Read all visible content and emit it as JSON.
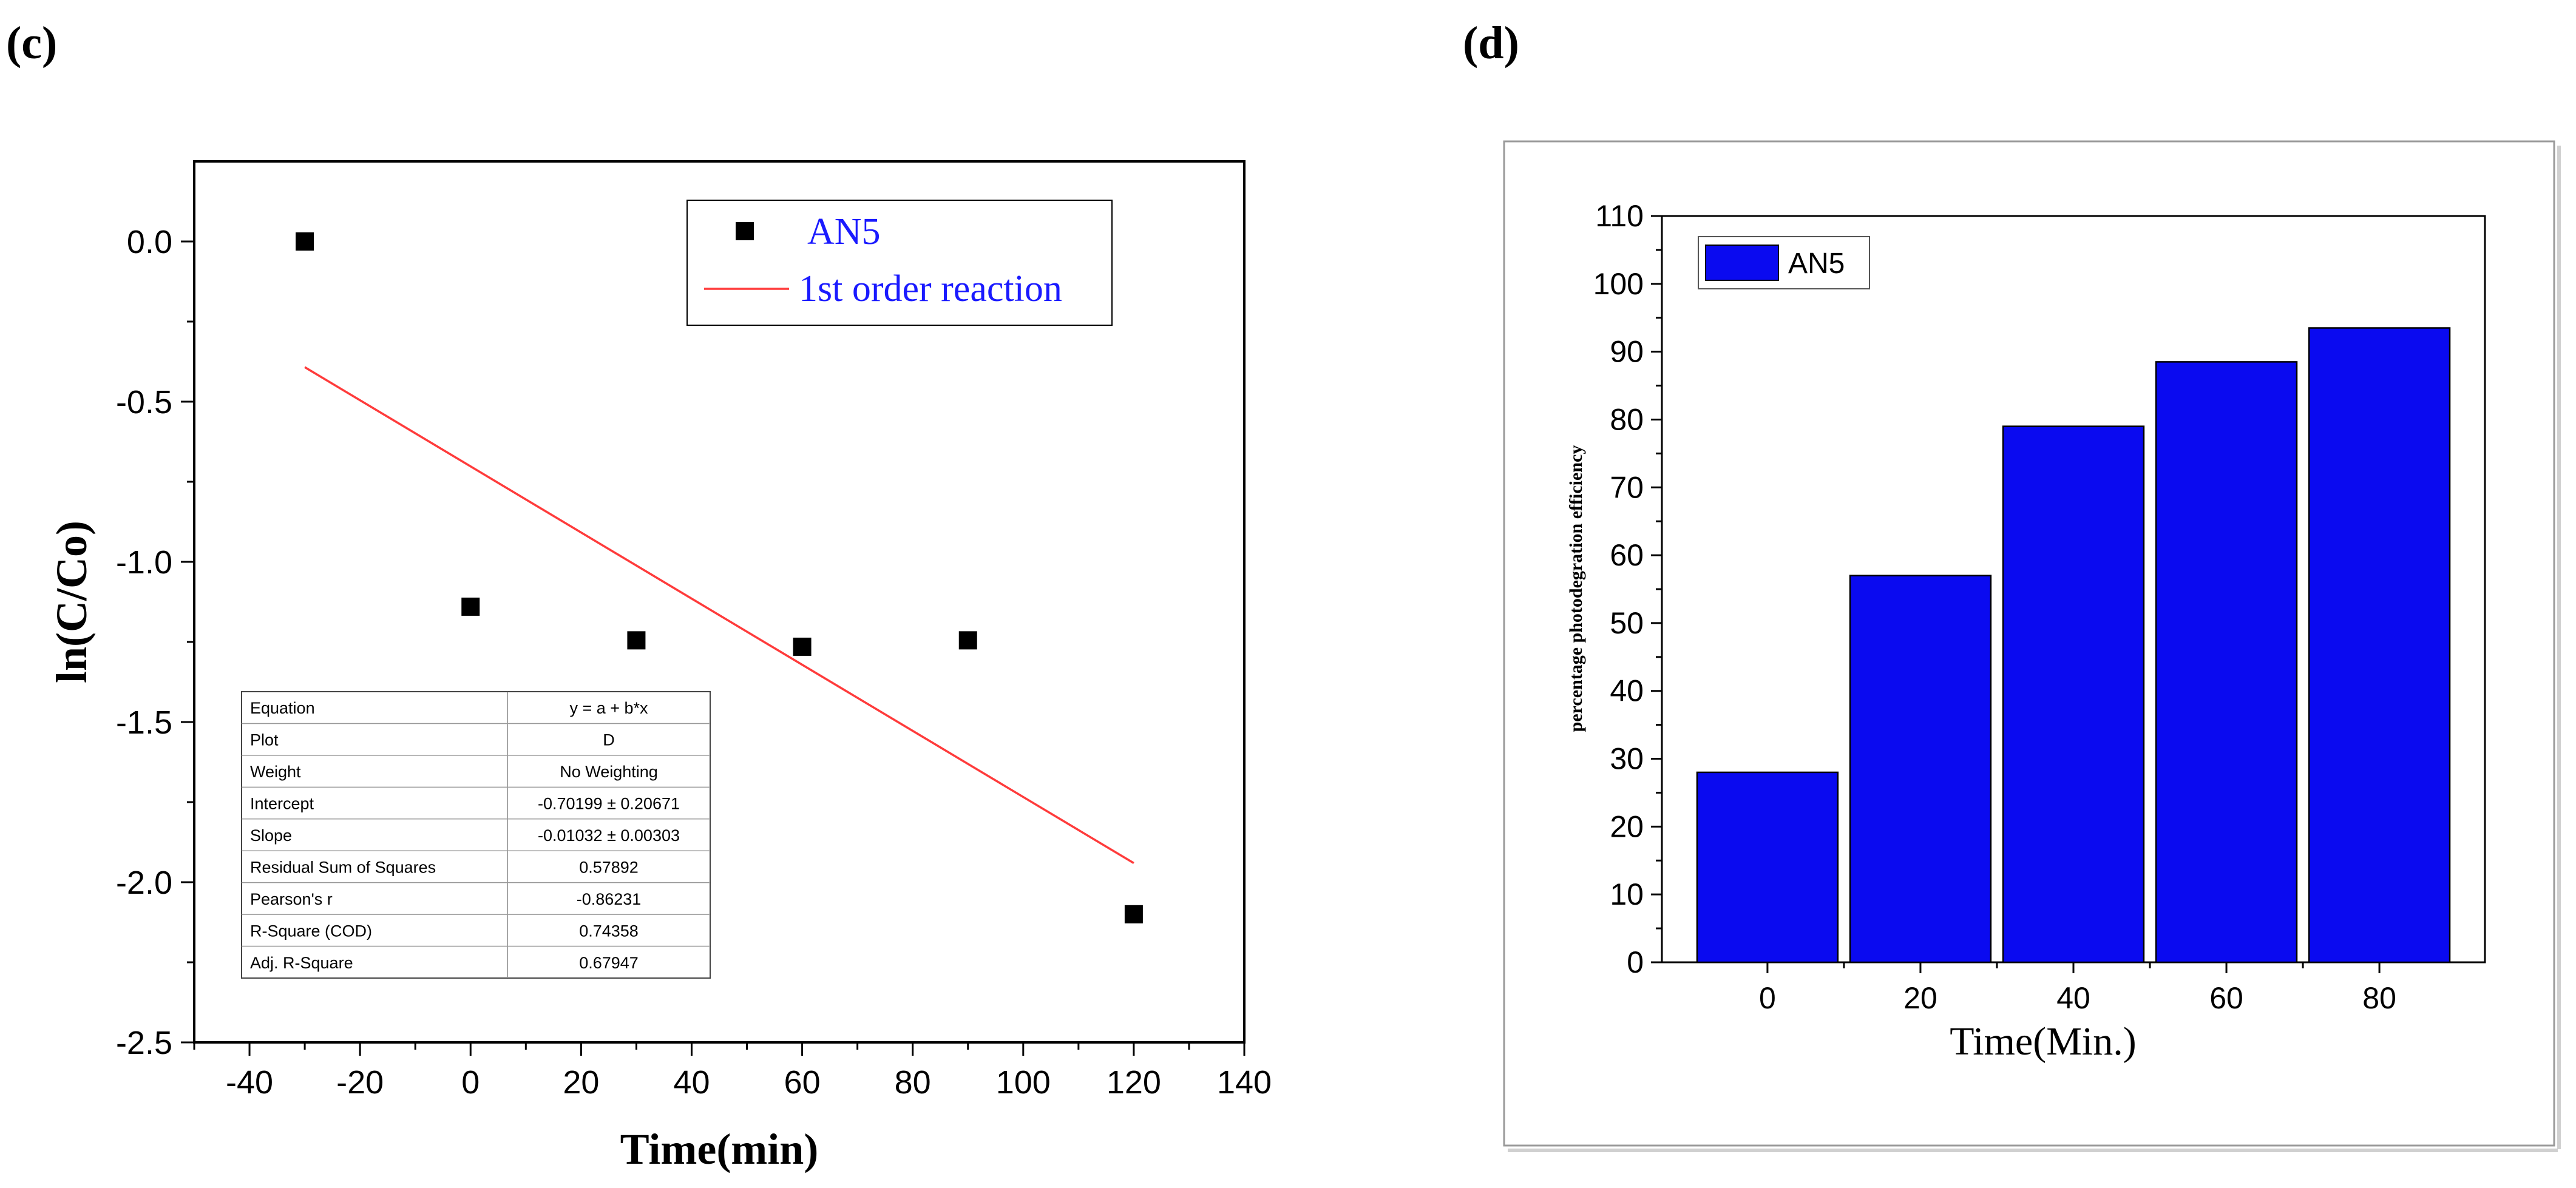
{
  "panels": {
    "c_label": "(c)",
    "d_label": "(d)"
  },
  "chart_data": [
    {
      "type": "scatter",
      "panel": "c",
      "title": "",
      "xlabel": "Time(min)",
      "ylabel": "ln(C/Co)",
      "xlim": [
        -50,
        140
      ],
      "ylim": [
        -2.5,
        0.25
      ],
      "xticks": [
        -40,
        -20,
        0,
        20,
        40,
        60,
        80,
        100,
        120,
        140
      ],
      "xtick_labels": [
        "-40",
        "-20",
        "0",
        "20",
        "40",
        "60",
        "80",
        "100",
        "120",
        "140"
      ],
      "yticks": [
        0.0,
        -0.5,
        -1.0,
        -1.5,
        -2.0,
        -2.5
      ],
      "ytick_labels": [
        "0.0",
        "-0.5",
        "-1.0",
        "-1.5",
        "-2.0",
        "-2.5"
      ],
      "series": [
        {
          "name": "AN5",
          "x": [
            -30,
            0,
            30,
            60,
            90,
            120
          ],
          "y": [
            0.0,
            -1.14,
            -1.245,
            -1.265,
            -1.245,
            -2.1
          ],
          "color": "#000000"
        }
      ],
      "fit": {
        "name": "1st order reaction",
        "intercept": -0.70199,
        "slope": -0.01032,
        "x_range": [
          -30,
          120
        ],
        "color": "#ff3b3b"
      },
      "legend": {
        "position": "top-right",
        "entries": [
          "AN5",
          "1st order reaction"
        ]
      },
      "fit_table": {
        "rows": [
          [
            "Equation",
            "y = a + b*x"
          ],
          [
            "Plot",
            "D"
          ],
          [
            "Weight",
            "No Weighting"
          ],
          [
            "Intercept",
            "-0.70199 ± 0.20671"
          ],
          [
            "Slope",
            "-0.01032 ± 0.00303"
          ],
          [
            "Residual Sum of Squares",
            "0.57892"
          ],
          [
            "Pearson's r",
            "-0.86231"
          ],
          [
            "R-Square (COD)",
            "0.74358"
          ],
          [
            "Adj. R-Square",
            "0.67947"
          ]
        ]
      }
    },
    {
      "type": "bar",
      "panel": "d",
      "title": "",
      "xlabel": "Time(Min.)",
      "ylabel": "percentage photodegration efficiency",
      "categories": [
        "0",
        "20",
        "40",
        "60",
        "80"
      ],
      "values": [
        28,
        57,
        79,
        88.5,
        93.5
      ],
      "ylim": [
        0,
        110
      ],
      "yticks": [
        0,
        10,
        20,
        30,
        40,
        50,
        60,
        70,
        80,
        90,
        100,
        110
      ],
      "ytick_labels": [
        "0",
        "10",
        "20",
        "30",
        "40",
        "50",
        "60",
        "70",
        "80",
        "90",
        "100",
        "110"
      ],
      "legend": {
        "position": "top-left",
        "entries": [
          "AN5"
        ]
      },
      "color": "#0a0af0"
    }
  ]
}
